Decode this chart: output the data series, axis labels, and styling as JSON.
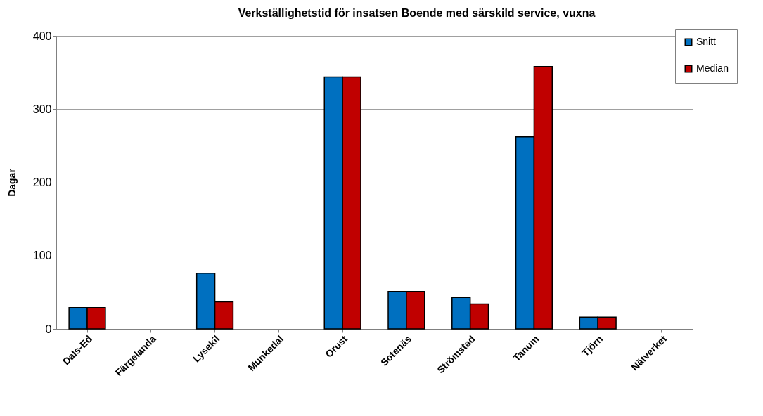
{
  "chart_data": {
    "type": "bar",
    "title": "Verkställighetstid för insatsen Boende med särskild service, vuxna",
    "ylabel": "Dagar",
    "categories": [
      "Dals-Ed",
      "Färgelanda",
      "Lysekil",
      "Munkedal",
      "Orust",
      "Sotenäs",
      "Strömstad",
      "Tanum",
      "Tjörn",
      "Nätverket"
    ],
    "series": [
      {
        "name": "Snitt",
        "color": "#0070c0",
        "values": [
          29,
          null,
          76,
          null,
          344,
          51,
          43,
          262,
          16,
          null
        ]
      },
      {
        "name": "Median",
        "color": "#c00000",
        "values": [
          29,
          null,
          37,
          null,
          344,
          51,
          34,
          358,
          16,
          null
        ]
      }
    ],
    "ylim": [
      0,
      400
    ],
    "yticks": [
      0,
      100,
      200,
      300,
      400
    ],
    "grid": "y",
    "legend": "top right"
  }
}
